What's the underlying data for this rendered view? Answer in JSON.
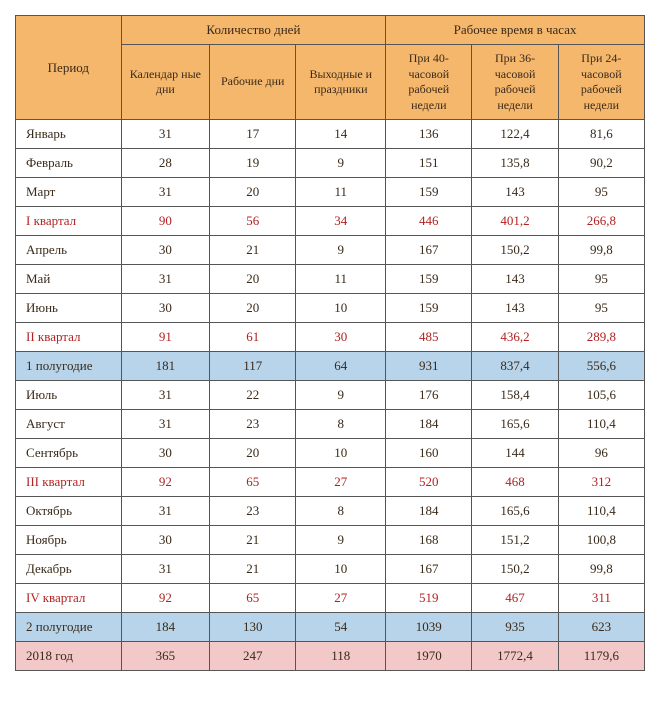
{
  "header": {
    "period": "Период",
    "days_group": "Количество дней",
    "hours_group": "Рабочее время в часах",
    "calendar_days": "Календар ные дни",
    "work_days": "Рабочие дни",
    "weekends": "Выходные и праздники",
    "h40": "При 40-часовой рабочей недели",
    "h36": "При 36-часовой рабочей недели",
    "h24": "При 24-часовой рабочей недели"
  },
  "rows": [
    {
      "type": "month",
      "period": "Январь",
      "cal": "31",
      "work": "17",
      "off": "14",
      "h40": "136",
      "h36": "122,4",
      "h24": "81,6"
    },
    {
      "type": "month",
      "period": "Февраль",
      "cal": "28",
      "work": "19",
      "off": "9",
      "h40": "151",
      "h36": "135,8",
      "h24": "90,2"
    },
    {
      "type": "month",
      "period": "Март",
      "cal": "31",
      "work": "20",
      "off": "11",
      "h40": "159",
      "h36": "143",
      "h24": "95"
    },
    {
      "type": "quarter",
      "period": "I квартал",
      "cal": "90",
      "work": "56",
      "off": "34",
      "h40": "446",
      "h36": "401,2",
      "h24": "266,8"
    },
    {
      "type": "month",
      "period": "Апрель",
      "cal": "30",
      "work": "21",
      "off": "9",
      "h40": "167",
      "h36": "150,2",
      "h24": "99,8"
    },
    {
      "type": "month",
      "period": "Май",
      "cal": "31",
      "work": "20",
      "off": "11",
      "h40": "159",
      "h36": "143",
      "h24": "95"
    },
    {
      "type": "month",
      "period": "Июнь",
      "cal": "30",
      "work": "20",
      "off": "10",
      "h40": "159",
      "h36": "143",
      "h24": "95"
    },
    {
      "type": "quarter",
      "period": "II квартал",
      "cal": "91",
      "work": "61",
      "off": "30",
      "h40": "485",
      "h36": "436,2",
      "h24": "289,8"
    },
    {
      "type": "half",
      "period": "1 полугодие",
      "cal": "181",
      "work": "117",
      "off": "64",
      "h40": "931",
      "h36": "837,4",
      "h24": "556,6"
    },
    {
      "type": "month",
      "period": "Июль",
      "cal": "31",
      "work": "22",
      "off": "9",
      "h40": "176",
      "h36": "158,4",
      "h24": "105,6"
    },
    {
      "type": "month",
      "period": "Август",
      "cal": "31",
      "work": "23",
      "off": "8",
      "h40": "184",
      "h36": "165,6",
      "h24": "110,4"
    },
    {
      "type": "month",
      "period": "Сентябрь",
      "cal": "30",
      "work": "20",
      "off": "10",
      "h40": "160",
      "h36": "144",
      "h24": "96"
    },
    {
      "type": "quarter",
      "period": "III квартал",
      "cal": "92",
      "work": "65",
      "off": "27",
      "h40": "520",
      "h36": "468",
      "h24": "312"
    },
    {
      "type": "month",
      "period": "Октябрь",
      "cal": "31",
      "work": "23",
      "off": "8",
      "h40": "184",
      "h36": "165,6",
      "h24": "110,4"
    },
    {
      "type": "month",
      "period": "Ноябрь",
      "cal": "30",
      "work": "21",
      "off": "9",
      "h40": "168",
      "h36": "151,2",
      "h24": "100,8"
    },
    {
      "type": "month",
      "period": "Декабрь",
      "cal": "31",
      "work": "21",
      "off": "10",
      "h40": "167",
      "h36": "150,2",
      "h24": "99,8"
    },
    {
      "type": "quarter",
      "period": "IV квартал",
      "cal": "92",
      "work": "65",
      "off": "27",
      "h40": "519",
      "h36": "467",
      "h24": "311"
    },
    {
      "type": "half",
      "period": "2 полугодие",
      "cal": "184",
      "work": "130",
      "off": "54",
      "h40": "1039",
      "h36": "935",
      "h24": "623"
    },
    {
      "type": "year",
      "period": "2018 год",
      "cal": "365",
      "work": "247",
      "off": "118",
      "h40": "1970",
      "h36": "1772,4",
      "h24": "1179,6"
    }
  ],
  "colors": {
    "header_bg": "#f5b76c",
    "half_bg": "#b8d4ea",
    "year_bg": "#f2c8c8",
    "quarter_text": "#b22222",
    "border": "#555555",
    "text": "#3a2a1a"
  }
}
